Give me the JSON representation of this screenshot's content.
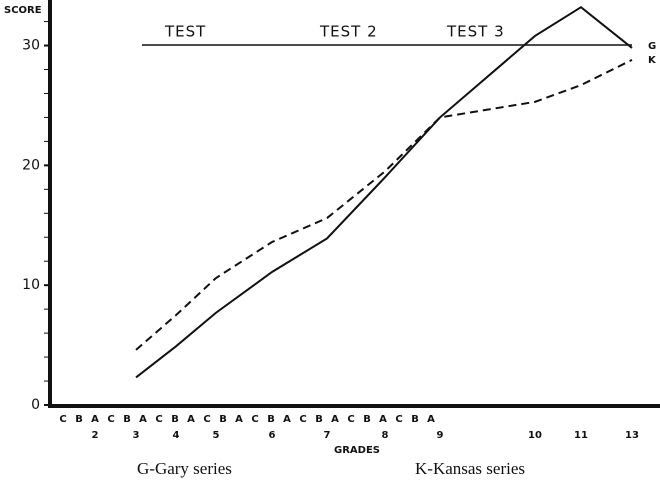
{
  "chart_data": {
    "type": "line",
    "y_label": "SCORE",
    "x_label": "GRADES",
    "categories": [
      "2",
      "3",
      "4",
      "5",
      "6",
      "7",
      "8",
      "9",
      "10",
      "11",
      "13"
    ],
    "half_grades": [
      "C",
      "B",
      "A",
      "C",
      "B",
      "A",
      "C",
      "B",
      "A",
      "C",
      "B",
      "A",
      "C",
      "B",
      "A",
      "C",
      "B",
      "A",
      "C",
      "B",
      "A",
      "C",
      "B",
      "A"
    ],
    "tests": [
      "TEST",
      "TEST 2",
      "TEST 3"
    ],
    "series": [
      {
        "name": "G",
        "color": "#111",
        "dash": "solid",
        "values": [
          null,
          2.3,
          4.9,
          7.7,
          11.1,
          13.9,
          19,
          24,
          30.8,
          33.2,
          29.8
        ]
      },
      {
        "name": "K",
        "color": "#111",
        "dash": "dashed",
        "values": [
          null,
          4.6,
          7.5,
          10.6,
          13.6,
          15.6,
          19.5,
          24,
          25.3,
          26.7,
          28.8
        ]
      }
    ],
    "captions": [
      "G-Gary series",
      "K-Kansas series"
    ],
    "ylim": [
      0,
      33.8
    ],
    "yticks": [
      0,
      10,
      20,
      30
    ]
  }
}
